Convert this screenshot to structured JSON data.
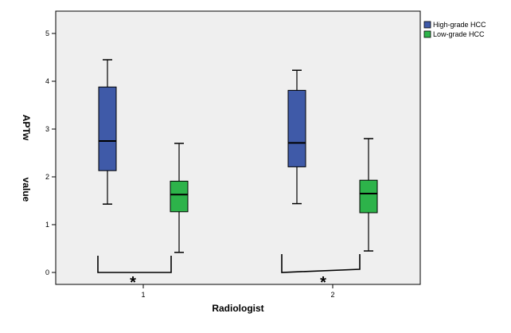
{
  "chart_data": {
    "type": "boxplot",
    "xlabel": "Radiologist",
    "ylabel_parts": [
      "APTw",
      "value"
    ],
    "ylim": [
      -0.25,
      5.25
    ],
    "yticks": [
      0,
      1,
      2,
      3,
      4,
      5
    ],
    "categories": [
      "1",
      "2"
    ],
    "grid": false,
    "legend_position": "top-right",
    "series": [
      {
        "name": "High-grade HCC",
        "color": "#3f5aa8",
        "boxes": [
          {
            "min": 1.43,
            "q1": 2.13,
            "median": 2.75,
            "q3": 3.88,
            "max": 4.45
          },
          {
            "min": 1.44,
            "q1": 2.21,
            "median": 2.71,
            "q3": 3.81,
            "max": 4.23
          }
        ]
      },
      {
        "name": "Low-grade HCC",
        "color": "#2db34a",
        "boxes": [
          {
            "min": 0.42,
            "q1": 1.27,
            "median": 1.63,
            "q3": 1.91,
            "max": 2.7
          },
          {
            "min": 0.45,
            "q1": 1.25,
            "median": 1.65,
            "q3": 1.93,
            "max": 2.8
          }
        ]
      }
    ],
    "annotations": [
      "*",
      "*"
    ]
  }
}
